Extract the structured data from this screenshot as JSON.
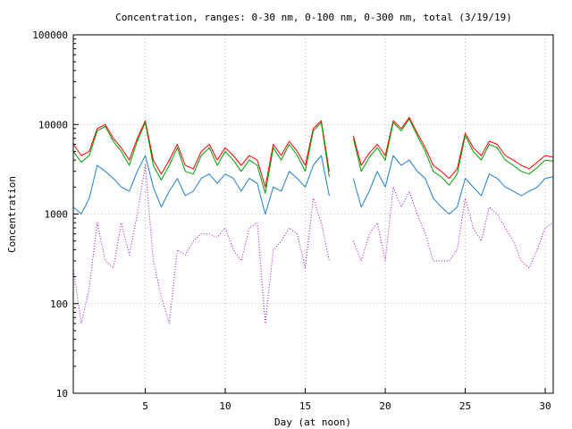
{
  "chart_data": {
    "type": "line",
    "title": "Concentration, ranges: 0-30 nm, 0-100 nm, 0-300 nm, total (3/19/19)",
    "xlabel": "Day (at noon)",
    "ylabel": "Concentration",
    "xlim": [
      0.5,
      30.5
    ],
    "ylim": [
      10,
      100000
    ],
    "yscale": "log",
    "grid": true,
    "legend": "none",
    "x_ticks": [
      5,
      10,
      15,
      20,
      25,
      30
    ],
    "x_tick_labels": [
      "5",
      "10",
      "15",
      "20",
      "25",
      "30"
    ],
    "y_ticks": [
      10,
      100,
      1000,
      10000,
      100000
    ],
    "y_tick_labels": [
      "10",
      "100",
      "1000",
      "10000",
      "100000"
    ],
    "series": [
      {
        "color": "#ff0000",
        "x": [
          0.5,
          1.0,
          1.5,
          2.0,
          2.5,
          3.0,
          3.5,
          4.0,
          4.5,
          5.0,
          5.5,
          6.0,
          6.5,
          7.0,
          7.5,
          8.0,
          8.5,
          9.0,
          9.5,
          10.0,
          10.5,
          11.0,
          11.5,
          12.0,
          12.5,
          13.0,
          13.5,
          14.0,
          14.5,
          15.0,
          15.5,
          16.0,
          16.5,
          17.8,
          18.0,
          18.5,
          19.0,
          19.5,
          20.0,
          20.5,
          21.0,
          21.5,
          22.0,
          22.5,
          23.0,
          23.5,
          24.0,
          24.5,
          25.0,
          25.5,
          26.0,
          26.5,
          27.0,
          27.5,
          28.0,
          28.5,
          29.0,
          29.5,
          30.0,
          30.5
        ],
        "y": [
          6000,
          4500,
          5000,
          9000,
          10000,
          7000,
          5500,
          4000,
          7000,
          11000,
          4000,
          2800,
          4000,
          6000,
          3500,
          3200,
          5000,
          6000,
          4000,
          5500,
          4500,
          3500,
          4500,
          4000,
          2000,
          6000,
          4500,
          6500,
          5000,
          3500,
          9000,
          11000,
          3000,
          null,
          7500,
          3500,
          4800,
          6000,
          4500,
          11000,
          9000,
          12000,
          8000,
          5500,
          3500,
          3000,
          2500,
          3200,
          8000,
          5500,
          4500,
          6500,
          6000,
          4500,
          4000,
          3500,
          3200,
          3800,
          4500,
          4300
        ]
      },
      {
        "color": "#00a000",
        "x": [
          0.5,
          1.0,
          1.5,
          2.0,
          2.5,
          3.0,
          3.5,
          4.0,
          4.5,
          5.0,
          5.5,
          6.0,
          6.5,
          7.0,
          7.5,
          8.0,
          8.5,
          9.0,
          9.5,
          10.0,
          10.5,
          11.0,
          11.5,
          12.0,
          12.5,
          13.0,
          13.5,
          14.0,
          14.5,
          15.0,
          15.5,
          16.0,
          16.5,
          17.8,
          18.0,
          18.5,
          19.0,
          19.5,
          20.0,
          20.5,
          21.0,
          21.5,
          22.0,
          22.5,
          23.0,
          23.5,
          24.0,
          24.5,
          25.0,
          25.5,
          26.0,
          26.5,
          27.0,
          27.5,
          28.0,
          28.5,
          29.0,
          29.5,
          30.0,
          30.5
        ],
        "y": [
          5000,
          3800,
          4500,
          8500,
          9500,
          6500,
          5000,
          3500,
          6500,
          10500,
          3500,
          2400,
          3500,
          5500,
          3000,
          2800,
          4500,
          5500,
          3500,
          5000,
          4000,
          3000,
          4000,
          3500,
          1700,
          5500,
          4000,
          6000,
          4500,
          3000,
          8500,
          10500,
          2600,
          null,
          7000,
          3000,
          4300,
          5500,
          4000,
          10500,
          8500,
          11500,
          7500,
          5000,
          3000,
          2600,
          2100,
          2800,
          7500,
          5000,
          4000,
          6000,
          5500,
          4000,
          3500,
          3000,
          2800,
          3300,
          4000,
          3900
        ]
      },
      {
        "color": "#1e7fd0",
        "x": [
          0.5,
          1.0,
          1.5,
          2.0,
          2.5,
          3.0,
          3.5,
          4.0,
          4.5,
          5.0,
          5.5,
          6.0,
          6.5,
          7.0,
          7.5,
          8.0,
          8.5,
          9.0,
          9.5,
          10.0,
          10.5,
          11.0,
          11.5,
          12.0,
          12.5,
          13.0,
          13.5,
          14.0,
          14.5,
          15.0,
          15.5,
          16.0,
          16.5,
          17.8,
          18.0,
          18.5,
          19.0,
          19.5,
          20.0,
          20.5,
          21.0,
          21.5,
          22.0,
          22.5,
          23.0,
          23.5,
          24.0,
          24.5,
          25.0,
          25.5,
          26.0,
          26.5,
          27.0,
          27.5,
          28.0,
          28.5,
          29.0,
          29.5,
          30.0,
          30.5
        ],
        "y": [
          1200,
          1000,
          1500,
          3500,
          3000,
          2500,
          2000,
          1800,
          3000,
          4500,
          2000,
          1200,
          1800,
          2500,
          1600,
          1800,
          2500,
          2800,
          2200,
          2800,
          2500,
          1800,
          2500,
          2200,
          1000,
          2000,
          1800,
          3000,
          2500,
          2000,
          3500,
          4500,
          1600,
          null,
          2500,
          1200,
          1800,
          3000,
          2000,
          4500,
          3500,
          4000,
          3000,
          2500,
          1500,
          1200,
          1000,
          1200,
          2500,
          2000,
          1600,
          2800,
          2500,
          2000,
          1800,
          1600,
          1800,
          2000,
          2500,
          2600
        ]
      },
      {
        "color": "#a000e0",
        "x": [
          0.5,
          1.0,
          1.5,
          2.0,
          2.5,
          3.0,
          3.5,
          4.0,
          4.5,
          5.0,
          5.5,
          6.0,
          6.5,
          7.0,
          7.5,
          8.0,
          8.5,
          9.0,
          9.5,
          10.0,
          10.5,
          11.0,
          11.5,
          12.0,
          12.5,
          13.0,
          13.5,
          14.0,
          14.5,
          15.0,
          15.5,
          16.0,
          16.5,
          17.8,
          18.0,
          18.5,
          19.0,
          19.5,
          20.0,
          20.5,
          21.0,
          21.5,
          22.0,
          22.5,
          23.0,
          23.5,
          24.0,
          24.5,
          25.0,
          25.5,
          26.0,
          26.5,
          27.0,
          27.5,
          28.0,
          28.5,
          29.0,
          29.5,
          30.0,
          30.5
        ],
        "y": [
          250,
          60,
          150,
          800,
          300,
          250,
          800,
          350,
          1000,
          3500,
          300,
          120,
          60,
          400,
          350,
          500,
          600,
          600,
          550,
          700,
          400,
          300,
          700,
          800,
          60,
          400,
          500,
          700,
          600,
          250,
          1500,
          800,
          300,
          null,
          500,
          300,
          600,
          800,
          300,
          2000,
          1200,
          1800,
          1000,
          600,
          300,
          300,
          300,
          400,
          1500,
          700,
          500,
          1200,
          1000,
          700,
          500,
          300,
          250,
          400,
          700,
          800
        ]
      }
    ]
  }
}
